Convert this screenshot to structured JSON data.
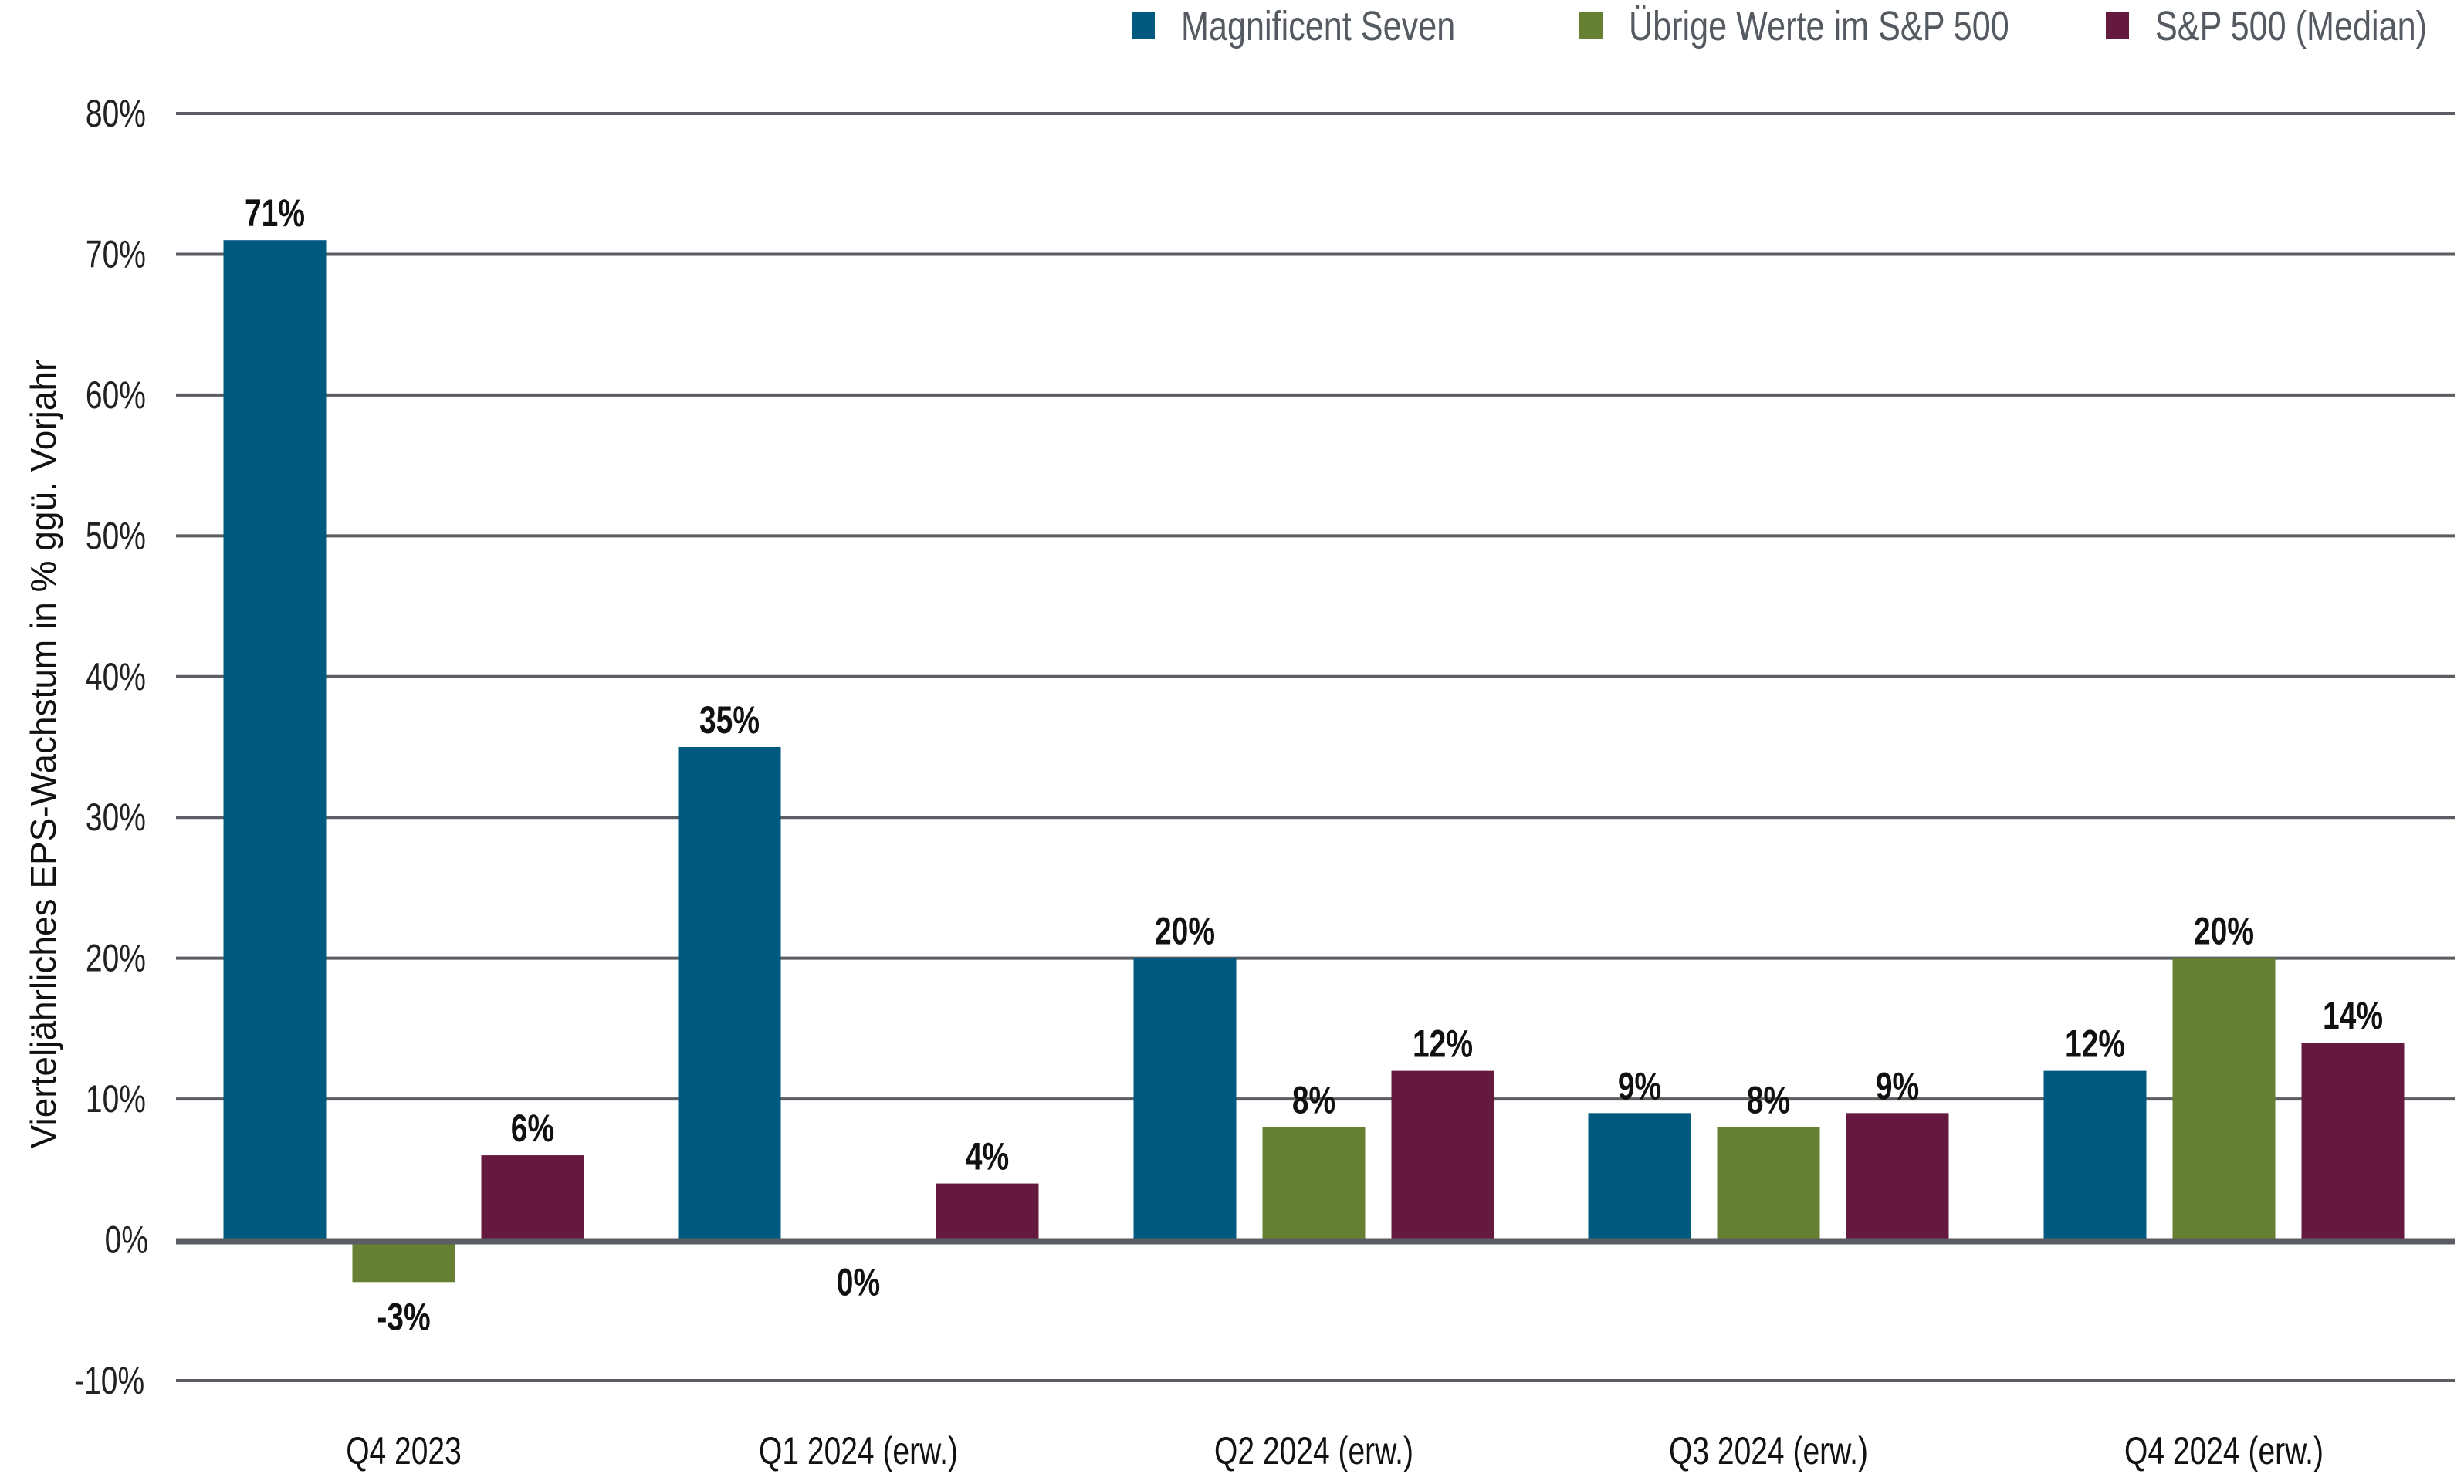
{
  "chart_data": {
    "type": "bar",
    "title": "",
    "xlabel": "",
    "ylabel": "Vierteljährliches EPS-Wachstum in % ggü. Vorjahr",
    "ylim": [
      -10,
      80
    ],
    "yticks": [
      -10,
      0,
      10,
      20,
      30,
      40,
      50,
      60,
      70,
      80
    ],
    "ytick_labels": [
      "-10%",
      "0%",
      "10%",
      "20%",
      "30%",
      "40%",
      "50%",
      "60%",
      "70%",
      "80%"
    ],
    "grid": true,
    "legend_position": "top-right",
    "categories": [
      "Q4 2023",
      "Q1 2024 (erw.)",
      "Q2 2024 (erw.)",
      "Q3 2024 (erw.)",
      "Q4 2024 (erw.)"
    ],
    "series": [
      {
        "name": "Magnificent Seven",
        "color": "#005a80",
        "values": [
          71,
          35,
          20,
          9,
          12
        ],
        "labels": [
          "71%",
          "35%",
          "20%",
          "9%",
          "12%"
        ]
      },
      {
        "name": "Übrige Werte im S&P 500",
        "color": "#658033",
        "values": [
          -3,
          -0.3,
          8,
          8,
          20
        ],
        "labels": [
          "-3%",
          "0%",
          "8%",
          "8%",
          "20%"
        ]
      },
      {
        "name": "S&P 500 (Median)",
        "color": "#66193f",
        "values": [
          6,
          4,
          12,
          9,
          14
        ],
        "labels": [
          "6%",
          "4%",
          "12%",
          "9%",
          "14%"
        ]
      }
    ]
  }
}
